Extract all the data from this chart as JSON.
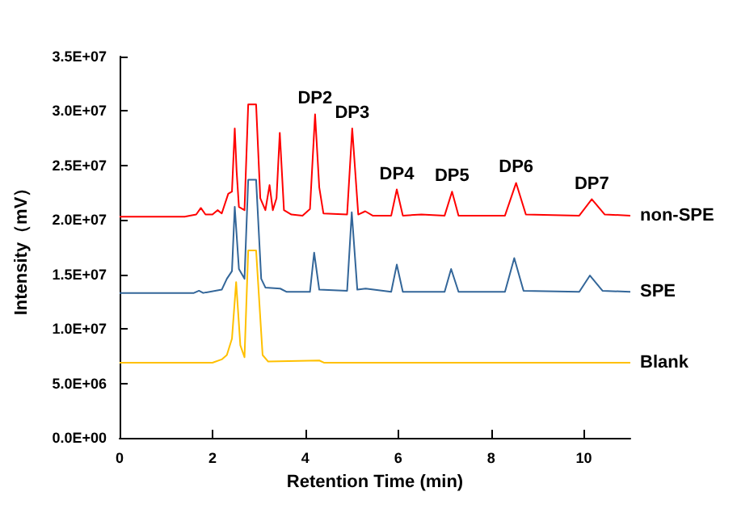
{
  "chart_data": {
    "type": "line",
    "xlabel": "Retention Time (min)",
    "ylabel": "Intensity（mV）",
    "marker": "none",
    "grid": false,
    "legend": false,
    "xlim": [
      0,
      11
    ],
    "xticks": [
      0,
      2,
      4,
      6,
      8,
      10
    ],
    "ylim": [
      0,
      35000000
    ],
    "yticks": [
      {
        "value": 0,
        "label": "0.0E+00"
      },
      {
        "value": 5000000,
        "label": "5.0E+06"
      },
      {
        "value": 10000000,
        "label": "1.0E+07"
      },
      {
        "value": 15000000,
        "label": "1.5E+07"
      },
      {
        "value": 20000000,
        "label": "2.0E+07"
      },
      {
        "value": 25000000,
        "label": "2.5E+07"
      },
      {
        "value": 30000000,
        "label": "3.0E+07"
      },
      {
        "value": 35000000,
        "label": "3.5E+07"
      }
    ],
    "series": [
      {
        "name": "non-SPE",
        "color": "#ff0000",
        "x": [
          0,
          1.4,
          1.65,
          1.75,
          1.85,
          2.0,
          2.11,
          2.2,
          2.34,
          2.42,
          2.48,
          2.52,
          2.57,
          2.69,
          2.77,
          2.94,
          3.03,
          3.14,
          3.23,
          3.3,
          3.38,
          3.45,
          3.54,
          3.7,
          3.94,
          4.1,
          4.21,
          4.3,
          4.39,
          4.9,
          5.01,
          5.14,
          5.29,
          5.45,
          5.85,
          5.97,
          6.1,
          6.5,
          7.0,
          7.16,
          7.3,
          8.3,
          8.54,
          8.75,
          9.9,
          10.17,
          10.45,
          11
        ],
        "values": [
          20300000,
          20300000,
          20500000,
          21100000,
          20500000,
          20500000,
          20900000,
          20600000,
          22400000,
          22600000,
          28400000,
          24500000,
          21200000,
          20900000,
          30600000,
          30600000,
          22000000,
          20900000,
          23200000,
          20900000,
          22000000,
          28000000,
          20900000,
          20500000,
          20400000,
          21000000,
          29700000,
          23000000,
          20600000,
          20500000,
          28400000,
          20500000,
          20800000,
          20400000,
          20400000,
          22800000,
          20400000,
          20500000,
          20400000,
          22600000,
          20400000,
          20400000,
          23400000,
          20500000,
          20400000,
          21900000,
          20500000,
          20400000
        ]
      },
      {
        "name": "SPE",
        "color": "#336699",
        "x": [
          0,
          1.6,
          1.71,
          1.8,
          2.2,
          2.31,
          2.42,
          2.48,
          2.57,
          2.69,
          2.77,
          2.94,
          3.05,
          3.14,
          3.46,
          3.6,
          4.1,
          4.19,
          4.3,
          4.9,
          5.0,
          5.12,
          5.3,
          5.85,
          5.97,
          6.1,
          7.0,
          7.14,
          7.3,
          8.3,
          8.5,
          8.7,
          9.9,
          10.13,
          10.4,
          11
        ],
        "values": [
          13300000,
          13300000,
          13500000,
          13300000,
          13600000,
          14600000,
          15300000,
          21200000,
          15500000,
          14600000,
          23700000,
          23700000,
          14600000,
          13800000,
          13700000,
          13400000,
          13400000,
          17000000,
          13600000,
          13500000,
          20700000,
          13600000,
          13700000,
          13400000,
          15900000,
          13400000,
          13400000,
          15500000,
          13400000,
          13400000,
          16500000,
          13500000,
          13400000,
          14900000,
          13500000,
          13400000
        ]
      },
      {
        "name": "Blank",
        "color": "#ffc000",
        "x": [
          0,
          2.0,
          2.2,
          2.31,
          2.42,
          2.51,
          2.6,
          2.69,
          2.77,
          2.94,
          3.08,
          3.2,
          4.3,
          4.4,
          11
        ],
        "values": [
          6900000,
          6900000,
          7200000,
          7600000,
          9100000,
          14300000,
          8500000,
          7400000,
          17200000,
          17200000,
          7600000,
          7000000,
          7100000,
          6900000,
          6900000
        ]
      }
    ],
    "annotations": [
      {
        "text": "DP2",
        "x": 4.21,
        "y": 29700000
      },
      {
        "text": "DP3",
        "x": 5.01,
        "y": 28400000
      },
      {
        "text": "DP4",
        "x": 5.97,
        "y": 22800000
      },
      {
        "text": "DP5",
        "x": 7.16,
        "y": 22600000
      },
      {
        "text": "DP6",
        "x": 8.54,
        "y": 23400000
      },
      {
        "text": "DP7",
        "x": 10.17,
        "y": 21900000
      }
    ]
  }
}
